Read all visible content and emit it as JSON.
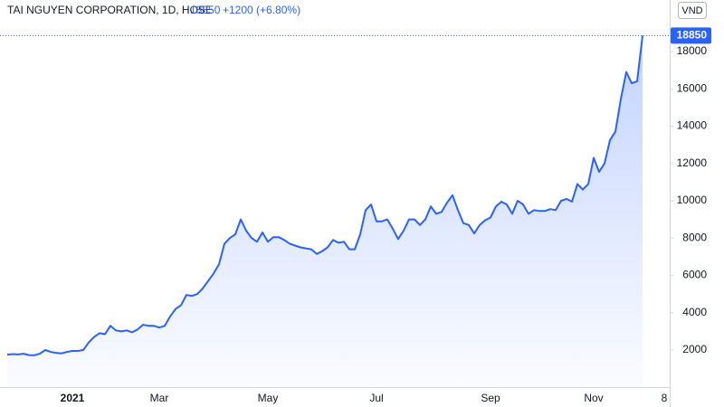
{
  "chart_data": {
    "type": "area",
    "title": "TAI NGUYEN CORPORATION, 1D, HOSE",
    "change": "+1200 (+6.80%)",
    "currency": "VND",
    "color": "#2962ff",
    "categories": [
      null,
      null,
      null,
      null,
      null,
      null,
      null,
      null,
      null,
      null,
      null,
      null,
      "2021",
      null,
      null,
      null,
      null,
      null,
      null,
      null,
      null,
      null,
      null,
      null,
      null,
      null,
      null,
      null,
      "Mar",
      null,
      null,
      null,
      null,
      null,
      null,
      null,
      null,
      null,
      null,
      null,
      null,
      null,
      null,
      null,
      null,
      null,
      null,
      null,
      "May",
      null,
      null,
      null,
      null,
      null,
      null,
      null,
      null,
      null,
      null,
      null,
      null,
      null,
      null,
      null,
      null,
      null,
      null,
      null,
      "Jul",
      null,
      null,
      null,
      null,
      null,
      null,
      null,
      null,
      null,
      null,
      null,
      null,
      null,
      null,
      null,
      null,
      null,
      null,
      null,
      null,
      "Sep",
      null,
      null,
      null,
      null,
      null,
      null,
      null,
      null,
      null,
      null,
      null,
      null,
      null,
      null,
      null,
      null,
      null,
      null,
      "Nov",
      null,
      null,
      null,
      null,
      null,
      null,
      null,
      null,
      null,
      null,
      null,
      null,
      "8"
    ],
    "values": [
      1750,
      1780,
      1760,
      1800,
      1730,
      1720,
      1800,
      2000,
      1900,
      1850,
      1820,
      1900,
      1950,
      1950,
      2000,
      2400,
      2700,
      2900,
      2850,
      3300,
      3050,
      3000,
      3050,
      2950,
      3100,
      3350,
      3300,
      3300,
      3200,
      3300,
      3800,
      4200,
      4400,
      4950,
      4900,
      5000,
      5300,
      5700,
      6100,
      6600,
      7700,
      8000,
      8200,
      9000,
      8400,
      8000,
      7800,
      8300,
      7800,
      8050,
      8050,
      7900,
      7700,
      7600,
      7500,
      7450,
      7400,
      7150,
      7300,
      7500,
      7900,
      7750,
      7800,
      7400,
      7400,
      8200,
      9500,
      9800,
      8900,
      8900,
      9000,
      8500,
      7950,
      8400,
      9000,
      9000,
      8700,
      9000,
      9700,
      9300,
      9400,
      9900,
      10300,
      9500,
      8800,
      8700,
      8250,
      8700,
      8950,
      9100,
      9700,
      9950,
      9800,
      9300,
      10000,
      9800,
      9300,
      9500,
      9450,
      9450,
      9550,
      9500,
      10000,
      10100,
      9950,
      10900,
      10600,
      10900,
      12300,
      11550,
      12000,
      13250,
      13700,
      15450,
      16900,
      16300,
      16400,
      18850,
      null,
      null,
      null,
      null
    ],
    "ylim": [
      0,
      20760
    ],
    "yticks": [
      2000,
      4000,
      6000,
      8000,
      10000,
      12000,
      14000,
      16000,
      18000
    ],
    "grid": false
  }
}
